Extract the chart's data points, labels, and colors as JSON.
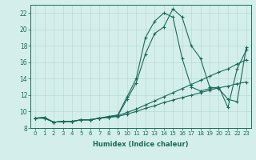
{
  "xlabel": "Humidex (Indice chaleur)",
  "bg_color": "#d4eeeb",
  "line_color": "#1a6b5a",
  "grid_color": "#b8dbd7",
  "xlim": [
    -0.5,
    23.5
  ],
  "ylim": [
    8,
    23
  ],
  "xticks": [
    0,
    1,
    2,
    3,
    4,
    5,
    6,
    7,
    8,
    9,
    10,
    11,
    12,
    13,
    14,
    15,
    16,
    17,
    18,
    19,
    20,
    21,
    22,
    23
  ],
  "yticks": [
    8,
    10,
    12,
    14,
    16,
    18,
    20,
    22
  ],
  "series": [
    {
      "x": [
        0,
        1,
        2,
        3,
        4,
        5,
        6,
        7,
        8,
        9,
        10,
        11,
        12,
        13,
        14,
        15,
        16,
        17,
        18,
        19,
        20,
        21,
        22,
        23
      ],
      "y": [
        9.2,
        9.3,
        8.7,
        8.8,
        8.8,
        9.0,
        9.0,
        9.2,
        9.4,
        9.5,
        11.5,
        13.5,
        17.0,
        19.5,
        20.3,
        22.5,
        21.5,
        18.0,
        16.5,
        13.0,
        12.8,
        11.5,
        11.2,
        17.8
      ]
    },
    {
      "x": [
        0,
        1,
        2,
        3,
        4,
        5,
        6,
        7,
        8,
        9,
        10,
        11,
        12,
        13,
        14,
        15,
        16,
        17,
        18,
        19,
        20,
        21,
        22,
        23
      ],
      "y": [
        9.2,
        9.3,
        8.7,
        8.8,
        8.8,
        9.0,
        9.0,
        9.2,
        9.4,
        9.6,
        11.8,
        14.0,
        19.0,
        21.0,
        22.0,
        21.5,
        16.5,
        13.0,
        12.5,
        12.8,
        13.0,
        10.5,
        15.2,
        17.5
      ]
    },
    {
      "x": [
        0,
        1,
        2,
        3,
        4,
        5,
        6,
        7,
        8,
        9,
        10,
        11,
        12,
        13,
        14,
        15,
        16,
        17,
        18,
        19,
        20,
        21,
        22,
        23
      ],
      "y": [
        9.2,
        9.2,
        8.7,
        8.8,
        8.8,
        9.0,
        9.0,
        9.2,
        9.3,
        9.5,
        9.9,
        10.3,
        10.8,
        11.3,
        11.8,
        12.3,
        12.8,
        13.3,
        13.8,
        14.3,
        14.8,
        15.2,
        15.8,
        16.3
      ]
    },
    {
      "x": [
        0,
        1,
        2,
        3,
        4,
        5,
        6,
        7,
        8,
        9,
        10,
        11,
        12,
        13,
        14,
        15,
        16,
        17,
        18,
        19,
        20,
        21,
        22,
        23
      ],
      "y": [
        9.2,
        9.2,
        8.7,
        8.8,
        8.8,
        9.0,
        9.0,
        9.2,
        9.3,
        9.4,
        9.7,
        10.0,
        10.4,
        10.7,
        11.1,
        11.4,
        11.7,
        12.0,
        12.3,
        12.6,
        12.9,
        13.1,
        13.4,
        13.6
      ]
    }
  ]
}
